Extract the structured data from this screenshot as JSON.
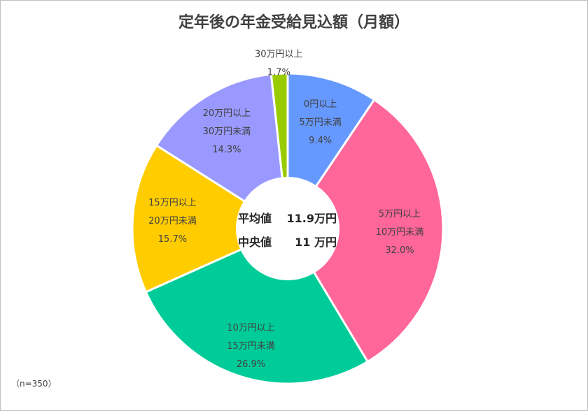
{
  "chart_data": {
    "type": "pie",
    "title": "定年後の年金受給見込額（月額）",
    "slices": [
      {
        "lines": [
          "0円以上",
          "5万円未満"
        ],
        "value": 9.4,
        "value_label": "9.4%",
        "color": "#6699ff"
      },
      {
        "lines": [
          "5万円以上",
          "10万円未満"
        ],
        "value": 32.0,
        "value_label": "32.0%",
        "color": "#ff6699"
      },
      {
        "lines": [
          "10万円以上",
          "15万円未満"
        ],
        "value": 26.9,
        "value_label": "26.9%",
        "color": "#00cc99"
      },
      {
        "lines": [
          "15万円以上",
          "20万円未満"
        ],
        "value": 15.7,
        "value_label": "15.7%",
        "color": "#ffcc00"
      },
      {
        "lines": [
          "20万円以上",
          "30万円未満"
        ],
        "value": 14.3,
        "value_label": "14.3%",
        "color": "#9999ff"
      },
      {
        "lines": [
          "30万円以上"
        ],
        "value": 1.7,
        "value_label": "1.7%",
        "color": "#99cc00"
      }
    ],
    "center": {
      "line1_label": "平均値",
      "line1_value": "11.9万円",
      "line2_label": "中央値",
      "line2_value": "11 万円"
    },
    "note": "（n=350）"
  }
}
